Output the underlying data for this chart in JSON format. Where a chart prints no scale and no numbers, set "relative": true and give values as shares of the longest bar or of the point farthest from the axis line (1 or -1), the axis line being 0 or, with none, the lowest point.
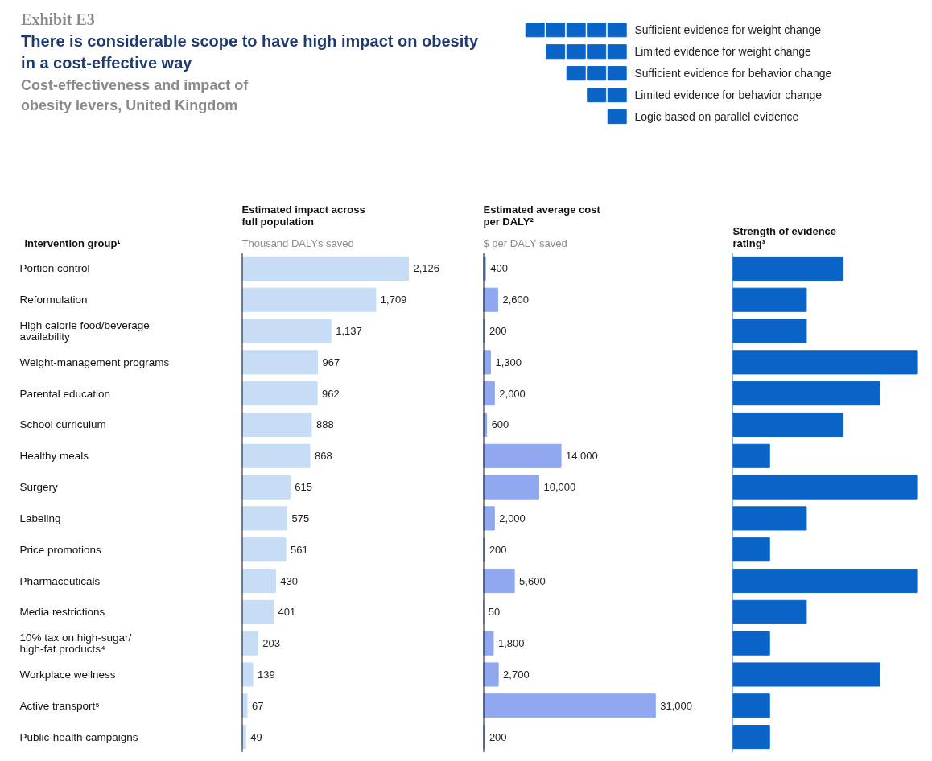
{
  "chart_data": [
    {
      "type": "other",
      "title": "There is considerable scope to have high impact on obesity in a cost-effective way",
      "subtitle": "Cost-effectiveness and impact of obesity levers, United Kingdom",
      "annotations": [
        "Exhibit E3"
      ]
    },
    {
      "type": "bar",
      "orientation": "horizontal",
      "title": "Estimated impact across full population",
      "subtitle": "Thousand DALYs saved",
      "ylabel": "Intervention group¹",
      "tick_labels": "y",
      "color": "#c6ddf5",
      "categories": [
        "Portion control",
        "Reformulation",
        "High calorie food/beverage availability",
        "Weight-management programs",
        "Parental education",
        "School curriculum",
        "Healthy meals",
        "Surgery",
        "Labeling",
        "Price promotions",
        "Pharmaceuticals",
        "Media restrictions",
        "10% tax on high-sugar/ high-fat products⁴",
        "Workplace wellness",
        "Active transport⁵",
        "Public-health campaigns"
      ],
      "values": [
        2126,
        1709,
        1137,
        967,
        962,
        888,
        868,
        615,
        575,
        561,
        430,
        401,
        203,
        139,
        67,
        49
      ],
      "value_labels": [
        "2,126",
        "1,709",
        "1,137",
        "967",
        "962",
        "888",
        "868",
        "615",
        "575",
        "561",
        "430",
        "401",
        "203",
        "139",
        "67",
        "49"
      ]
    },
    {
      "type": "bar",
      "orientation": "horizontal",
      "title": "Estimated average cost per DALY²",
      "subtitle": "$ per DALY saved",
      "tick_labels": false,
      "color": "#8fa8f0",
      "categories": [
        "Portion control",
        "Reformulation",
        "High calorie food/beverage availability",
        "Weight-management programs",
        "Parental education",
        "School curriculum",
        "Healthy meals",
        "Surgery",
        "Labeling",
        "Price promotions",
        "Pharmaceuticals",
        "Media restrictions",
        "10% tax on high-sugar/ high-fat products⁴",
        "Workplace wellness",
        "Active transport⁵",
        "Public-health campaigns"
      ],
      "values": [
        400,
        2600,
        200,
        1300,
        2000,
        600,
        14000,
        10000,
        2000,
        200,
        5600,
        50,
        1800,
        2700,
        31000,
        200
      ],
      "value_labels": [
        "400",
        "2,600",
        "200",
        "1,300",
        "2,000",
        "600",
        "14,000",
        "10,000",
        "2,000",
        "200",
        "5,600",
        "50",
        "1,800",
        "2,700",
        "31,000",
        "200"
      ]
    },
    {
      "type": "bar",
      "orientation": "horizontal",
      "relative": true,
      "title": "Strength of evidence rating³",
      "tick_labels": false,
      "legend": "top left",
      "categories": [
        "Portion control",
        "Reformulation",
        "High calorie food/beverage availability",
        "Weight-management programs",
        "Parental education",
        "School curriculum",
        "Healthy meals",
        "Surgery",
        "Labeling",
        "Price promotions",
        "Pharmaceuticals",
        "Media restrictions",
        "10% tax on high-sugar/ high-fat products⁴",
        "Workplace wellness",
        "Active transport⁵",
        "Public-health campaigns"
      ],
      "series": [
        {
          "name": "Sufficient evidence for weight change",
          "color": "#0a64c8",
          "values": [
            null,
            null,
            null,
            1,
            null,
            null,
            null,
            1,
            null,
            null,
            1,
            null,
            null,
            null,
            null,
            null
          ]
        },
        {
          "name": "Limited evidence for weight change",
          "color": "#0a64c8",
          "values": [
            null,
            null,
            null,
            null,
            0.8,
            null,
            null,
            null,
            null,
            null,
            null,
            null,
            null,
            0.8,
            null,
            null
          ]
        },
        {
          "name": "Sufficient evidence for behavior change",
          "color": "#0a64c8",
          "values": [
            0.6,
            null,
            null,
            null,
            null,
            0.6,
            null,
            null,
            null,
            null,
            null,
            null,
            null,
            null,
            null,
            null
          ]
        },
        {
          "name": "Limited evidence for behavior change",
          "color": "#0a64c8",
          "values": [
            null,
            0.4,
            0.4,
            null,
            null,
            null,
            null,
            null,
            0.4,
            null,
            null,
            0.4,
            null,
            null,
            null,
            null
          ]
        },
        {
          "name": "Logic based on parallel evidence",
          "color": "#0a64c8",
          "values": [
            null,
            null,
            null,
            null,
            null,
            null,
            0.2,
            null,
            null,
            0.2,
            null,
            null,
            0.2,
            null,
            0.2,
            0.2
          ]
        }
      ]
    }
  ]
}
